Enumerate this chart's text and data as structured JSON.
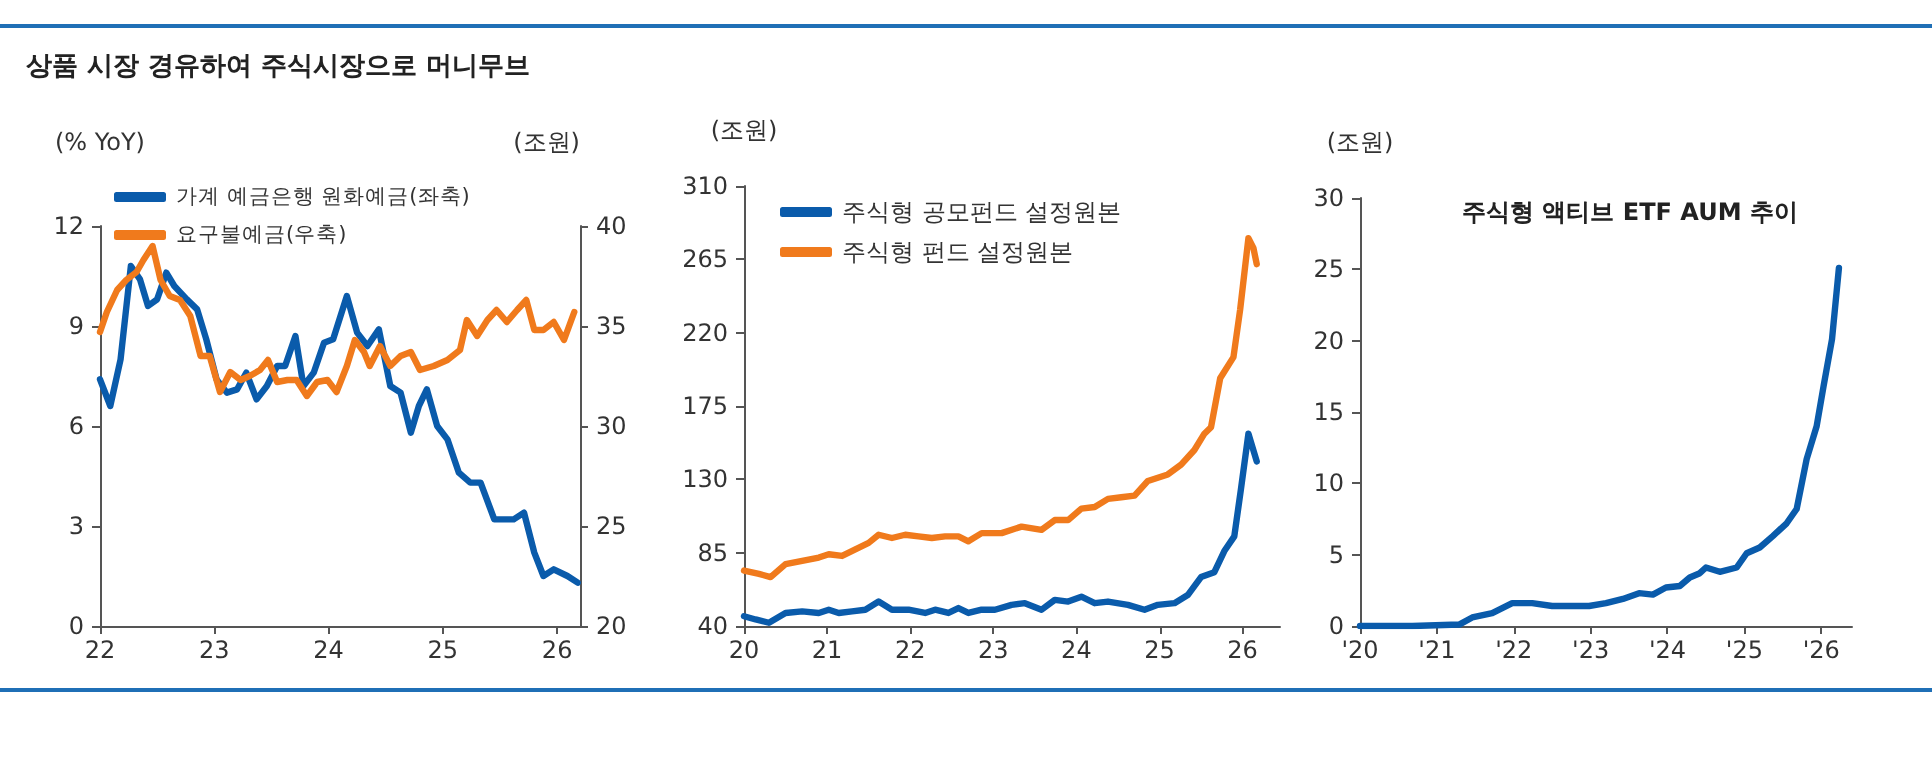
{
  "chart_data": [
    {
      "type": "line",
      "title": "상품 시장 경유하여 주식시장으로 머니무브",
      "ylabel": "(% YoY)",
      "y2label": "(조원)",
      "legend": "top left",
      "grid": false,
      "marker": "none",
      "line_style": "solid",
      "xlim": [
        2022,
        2026.2
      ],
      "xticks": [
        {
          "value": 2022,
          "label": "22"
        },
        {
          "value": 2023,
          "label": "23"
        },
        {
          "value": 2024,
          "label": "24"
        },
        {
          "value": 2025,
          "label": "25"
        },
        {
          "value": 2026,
          "label": "26"
        }
      ],
      "ylim": [
        0,
        12
      ],
      "yticks": [
        0,
        3,
        6,
        9,
        12
      ],
      "y2lim": [
        20,
        40
      ],
      "y2ticks": [
        20,
        25,
        30,
        35,
        40
      ],
      "series": [
        {
          "name": "가계 예금은행 원화예금(좌축)",
          "color": "#0a5bab",
          "x": [
            2022.0,
            2022.09,
            2022.18,
            2022.27,
            2022.35,
            2022.42,
            2022.5,
            2022.58,
            2022.65,
            2022.76,
            2022.85,
            2022.93,
            2023.02,
            2023.11,
            2023.2,
            2023.28,
            2023.37,
            2023.46,
            2023.55,
            2023.62,
            2023.71,
            2023.78,
            2023.87,
            2023.96,
            2024.04,
            2024.16,
            2024.25,
            2024.34,
            2024.44,
            2024.54,
            2024.63,
            2024.72,
            2024.79,
            2024.86,
            2024.95,
            2025.04,
            2025.14,
            2025.24,
            2025.33,
            2025.45,
            2025.53,
            2025.62,
            2025.71,
            2025.8,
            2025.88,
            2025.97,
            2026.09,
            2026.18
          ],
          "values": [
            7.4,
            6.6,
            8.0,
            10.8,
            10.4,
            9.6,
            9.8,
            10.6,
            10.2,
            9.8,
            9.5,
            8.6,
            7.4,
            7.0,
            7.1,
            7.6,
            6.8,
            7.2,
            7.8,
            7.8,
            8.7,
            7.2,
            7.6,
            8.5,
            8.6,
            9.9,
            8.8,
            8.4,
            8.9,
            7.2,
            7.0,
            5.8,
            6.6,
            7.1,
            6.0,
            5.6,
            4.6,
            4.3,
            4.3,
            3.2,
            3.2,
            3.2,
            3.4,
            2.2,
            1.5,
            1.7,
            1.5,
            1.3
          ]
        },
        {
          "name": "요구불예금(우축)",
          "color": "#f07a1c",
          "axis": "y2",
          "x": [
            2022.0,
            2022.06,
            2022.15,
            2022.23,
            2022.32,
            2022.38,
            2022.46,
            2022.53,
            2022.61,
            2022.7,
            2022.79,
            2022.88,
            2022.96,
            2023.05,
            2023.14,
            2023.23,
            2023.31,
            2023.4,
            2023.47,
            2023.55,
            2023.64,
            2023.72,
            2023.81,
            2023.9,
            2023.99,
            2024.07,
            2024.16,
            2024.23,
            2024.31,
            2024.36,
            2024.45,
            2024.54,
            2024.63,
            2024.72,
            2024.8,
            2024.92,
            2025.04,
            2025.15,
            2025.21,
            2025.3,
            2025.39,
            2025.47,
            2025.56,
            2025.65,
            2025.73,
            2025.8,
            2025.88,
            2025.97,
            2026.06,
            2026.15
          ],
          "values": [
            34.7,
            35.7,
            36.8,
            37.3,
            37.7,
            38.3,
            39.0,
            37.3,
            36.5,
            36.3,
            35.5,
            33.5,
            33.5,
            31.7,
            32.7,
            32.3,
            32.5,
            32.8,
            33.3,
            32.2,
            32.3,
            32.3,
            31.5,
            32.2,
            32.3,
            31.7,
            33.0,
            34.3,
            33.7,
            33.0,
            34.0,
            33.0,
            33.5,
            33.7,
            32.8,
            33.0,
            33.3,
            33.8,
            35.3,
            34.5,
            35.3,
            35.8,
            35.2,
            35.8,
            36.3,
            34.8,
            34.8,
            35.2,
            34.3,
            35.7
          ]
        }
      ]
    },
    {
      "type": "line",
      "ylabel": "(조원)",
      "legend": "top left",
      "grid": false,
      "marker": "none",
      "line_style": "solid",
      "xlim": [
        2020,
        2026.45
      ],
      "xticks": [
        {
          "value": 2020,
          "label": "20"
        },
        {
          "value": 2021,
          "label": "21"
        },
        {
          "value": 2022,
          "label": "22"
        },
        {
          "value": 2023,
          "label": "23"
        },
        {
          "value": 2024,
          "label": "24"
        },
        {
          "value": 2025,
          "label": "25"
        },
        {
          "value": 2026,
          "label": "26"
        }
      ],
      "ylim": [
        40,
        310
      ],
      "yticks": [
        40,
        85,
        130,
        175,
        220,
        265,
        310
      ],
      "series": [
        {
          "name": "주식형 공모펀드 설정원본",
          "color": "#0a5bab",
          "x": [
            2020.0,
            2020.14,
            2020.3,
            2020.5,
            2020.7,
            2020.9,
            2021.02,
            2021.14,
            2021.3,
            2021.46,
            2021.62,
            2021.78,
            2021.98,
            2022.18,
            2022.3,
            2022.46,
            2022.58,
            2022.7,
            2022.86,
            2023.02,
            2023.22,
            2023.38,
            2023.58,
            2023.74,
            2023.9,
            2024.06,
            2024.22,
            2024.38,
            2024.62,
            2024.82,
            2024.98,
            2025.18,
            2025.34,
            2025.5,
            2025.66,
            2025.78,
            2025.9,
            2025.98,
            2026.07,
            2026.17
          ],
          "values": [
            46,
            44,
            42,
            48,
            49,
            48,
            50,
            48,
            49,
            50,
            55,
            50,
            50,
            48,
            50,
            48,
            51,
            48,
            50,
            50,
            53,
            54,
            50,
            56,
            55,
            58,
            54,
            55,
            53,
            50,
            53,
            54,
            59,
            70,
            73,
            86,
            95,
            124,
            158,
            141
          ]
        },
        {
          "name": "주식형 펀드 설정원본",
          "color": "#f07a1c",
          "x": [
            2020.0,
            2020.18,
            2020.32,
            2020.5,
            2020.7,
            2020.9,
            2021.02,
            2021.18,
            2021.34,
            2021.5,
            2021.62,
            2021.78,
            2021.94,
            2022.1,
            2022.26,
            2022.42,
            2022.58,
            2022.7,
            2022.86,
            2023.1,
            2023.34,
            2023.58,
            2023.74,
            2023.9,
            2024.06,
            2024.22,
            2024.38,
            2024.54,
            2024.7,
            2024.86,
            2025.1,
            2025.26,
            2025.42,
            2025.54,
            2025.62,
            2025.73,
            2025.89,
            2025.97,
            2026.07,
            2026.13,
            2026.17
          ],
          "values": [
            74,
            72,
            70,
            78,
            80,
            82,
            84,
            83,
            87,
            91,
            96,
            94,
            96,
            95,
            94,
            95,
            95,
            92,
            97,
            97,
            101,
            99,
            105,
            105,
            112,
            113,
            118,
            119,
            120,
            129,
            133,
            139,
            148,
            158,
            162,
            192,
            205,
            234,
            278,
            272,
            262
          ]
        }
      ]
    },
    {
      "type": "line",
      "title": "주식형 액티브 ETF AUM 추이",
      "ylabel": "(조원)",
      "grid": false,
      "marker": "none",
      "line_style": "solid",
      "xlim": [
        2020,
        2026.4
      ],
      "xticks": [
        {
          "value": 2020,
          "label": "'20"
        },
        {
          "value": 2021,
          "label": "'21"
        },
        {
          "value": 2022,
          "label": "'22"
        },
        {
          "value": 2023,
          "label": "'23"
        },
        {
          "value": 2024,
          "label": "'24"
        },
        {
          "value": 2025,
          "label": "'25"
        },
        {
          "value": 2026,
          "label": "'26"
        }
      ],
      "ylim": [
        0,
        30
      ],
      "yticks": [
        0,
        5,
        10,
        15,
        20,
        25,
        30
      ],
      "series": [
        {
          "color": "#0a5bab",
          "x": [
            2020.0,
            2020.68,
            2021.29,
            2021.46,
            2021.72,
            2021.98,
            2022.24,
            2022.5,
            2022.77,
            2022.98,
            2023.2,
            2023.42,
            2023.63,
            2023.81,
            2023.98,
            2024.16,
            2024.29,
            2024.42,
            2024.5,
            2024.68,
            2024.9,
            2025.03,
            2025.2,
            2025.37,
            2025.55,
            2025.68,
            2025.81,
            2025.94,
            2026.03,
            2026.14,
            2026.23
          ],
          "values": [
            0,
            0,
            0.1,
            0.6,
            0.9,
            1.6,
            1.6,
            1.4,
            1.4,
            1.4,
            1.6,
            1.9,
            2.3,
            2.2,
            2.7,
            2.8,
            3.4,
            3.7,
            4.1,
            3.8,
            4.1,
            5.1,
            5.5,
            6.3,
            7.2,
            8.2,
            11.7,
            14.0,
            16.8,
            20.1,
            25.1
          ]
        }
      ]
    }
  ]
}
